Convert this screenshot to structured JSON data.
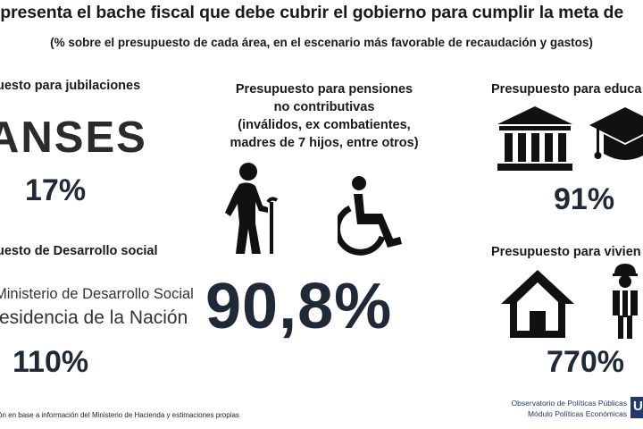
{
  "header": {
    "title": "representa el bache fiscal que debe cubrir el gobierno para cumplir la meta de",
    "subtitle": "(% sobre el presupuesto de cada área, en el escenario más favorable de recaudación y gastos)"
  },
  "left": {
    "jubilaciones": {
      "heading": "uesto para jubilaciones",
      "logo_text": "ANSES",
      "value": "17%"
    },
    "desarrollo": {
      "heading": "uesto de Desarrollo social",
      "logo_line1": "Ministerio de Desarrollo Social",
      "logo_line2": "residencia de la Nación",
      "value": "110%"
    }
  },
  "center": {
    "heading_lines": [
      "Presupuesto para pensiones",
      "no contributivas",
      "(inválidos, ex combatientes,",
      "madres de 7 hijos, entre otros)"
    ],
    "value": "90,8%",
    "icons": [
      "elderly-person-icon",
      "wheelchair-icon"
    ]
  },
  "right": {
    "educacion": {
      "heading": "Presupuesto para educa",
      "value": "91%",
      "icons": [
        "university-building-icon",
        "graduation-cap-icon"
      ]
    },
    "vivienda": {
      "heading": "Presupuesto para vivien",
      "value": "770%",
      "icons": [
        "house-icon",
        "construction-worker-icon"
      ]
    }
  },
  "footer": {
    "source": "ón en base a información del Ministerio de Hacienda y estimaciones propias",
    "observatorio": "Observatorio de Políticas Públicas",
    "modulo": "Módulo Políticas Económicas",
    "logo": "U"
  },
  "colors": {
    "text": "#1a1a1a",
    "accent": "#1f3a6b"
  }
}
